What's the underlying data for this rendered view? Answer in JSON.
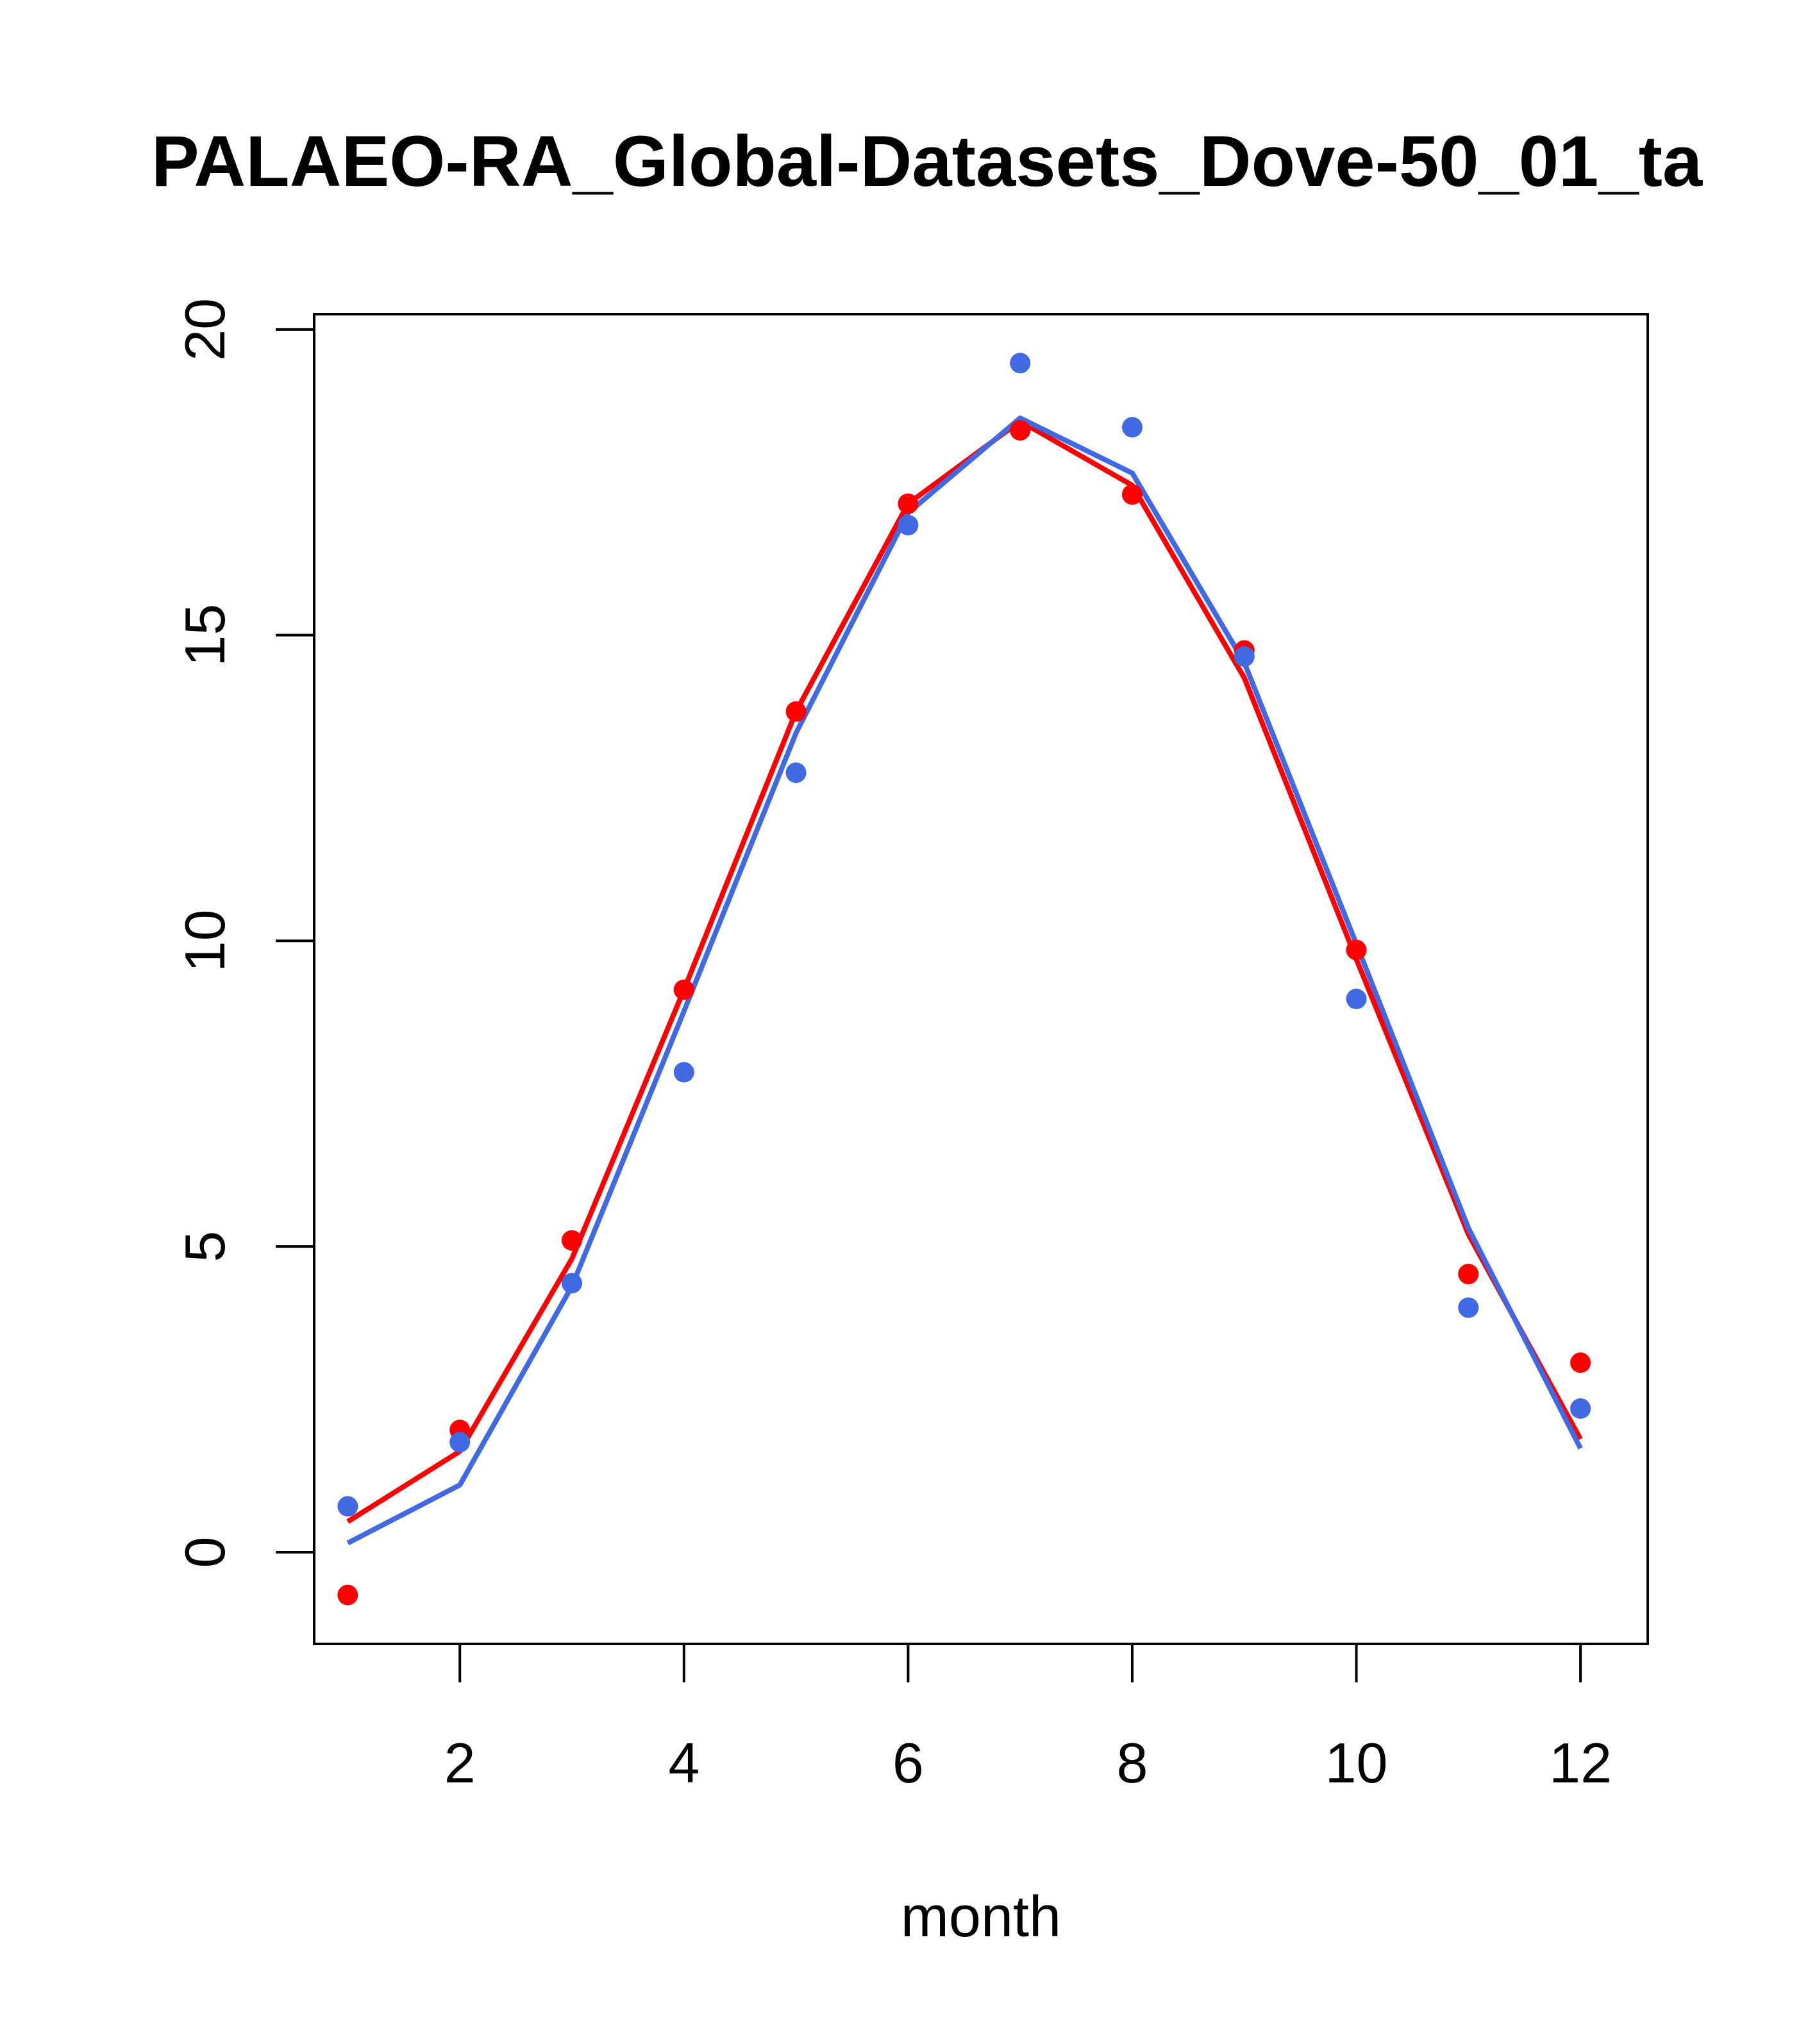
{
  "chart_data": {
    "type": "line",
    "title": "PALAEO-RA_Global-Datasets_Dove-50_01_ta",
    "xlabel": "month",
    "ylabel": "",
    "xlim": [
      0.7,
      12.6
    ],
    "ylim": [
      -1.5,
      20.25
    ],
    "x_ticks": [
      2,
      4,
      6,
      8,
      10,
      12
    ],
    "y_ticks": [
      0,
      5,
      10,
      15,
      20
    ],
    "x": [
      1,
      2,
      3,
      4,
      5,
      6,
      7,
      8,
      9,
      10,
      11,
      12
    ],
    "series": [
      {
        "color": "#ff0000",
        "line": [
          0.5,
          1.65,
          4.8,
          9.2,
          13.75,
          17.15,
          18.5,
          17.45,
          14.3,
          9.7,
          5.2,
          1.85
        ],
        "points": [
          -0.7,
          2.0,
          5.1,
          9.2,
          13.75,
          17.15,
          18.35,
          17.3,
          14.75,
          9.85,
          4.55,
          3.1
        ]
      },
      {
        "color": "#4169e1",
        "line": [
          0.15,
          1.1,
          4.35,
          8.85,
          13.4,
          17.0,
          18.55,
          17.65,
          14.55,
          9.95,
          5.3,
          1.7
        ],
        "points": [
          0.75,
          1.8,
          4.4,
          7.85,
          12.75,
          16.8,
          19.45,
          18.4,
          14.65,
          9.05,
          4.0,
          2.35
        ]
      }
    ]
  }
}
